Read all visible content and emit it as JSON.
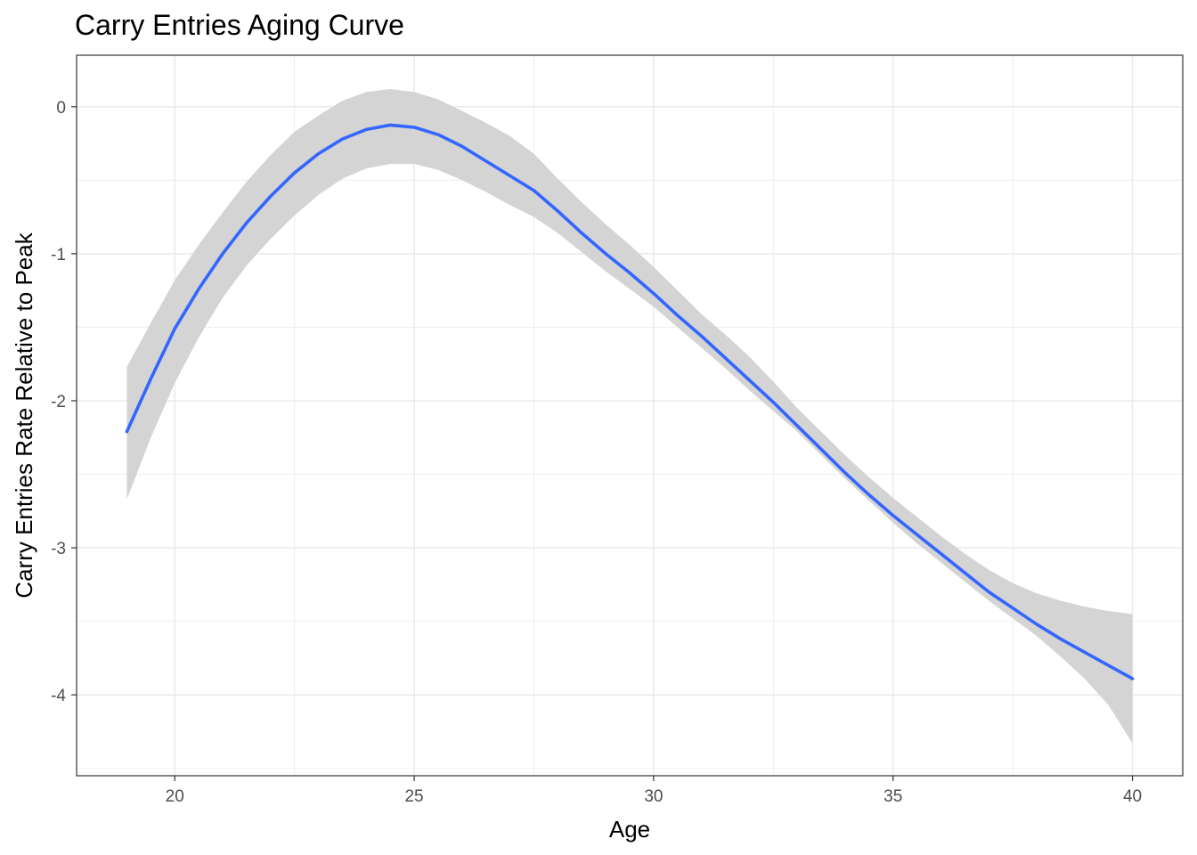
{
  "chart_data": {
    "type": "line",
    "title": "Carry Entries Aging Curve",
    "xlabel": "Age",
    "ylabel": "Carry Entries Rate Relative to Peak",
    "xlim": [
      17.95,
      41.05
    ],
    "ylim": [
      -4.55,
      0.35
    ],
    "x_ticks": [
      20,
      25,
      30,
      35,
      40
    ],
    "y_ticks": [
      0,
      -1,
      -2,
      -3,
      -4
    ],
    "x_tick_labels": [
      "20",
      "25",
      "30",
      "35",
      "40"
    ],
    "y_tick_labels": [
      "0",
      "-1",
      "-2",
      "-3",
      "-4"
    ],
    "grid": true,
    "colors": {
      "line": "#3366FF",
      "ribbon": "#d4d4d4",
      "grid": "#ebebeb",
      "border": "#333333"
    },
    "series": [
      {
        "x": [
          19,
          19.5,
          20,
          20.5,
          21,
          21.5,
          22,
          22.5,
          23,
          23.5,
          24,
          24.5,
          25,
          25.5,
          26,
          26.5,
          27,
          27.5,
          28,
          28.5,
          29,
          29.5,
          30,
          30.5,
          31,
          31.5,
          32,
          32.5,
          33,
          33.5,
          34,
          34.5,
          35,
          35.5,
          36,
          36.5,
          37,
          37.5,
          38,
          38.5,
          39,
          39.5,
          40
        ],
        "y": [
          -2.21,
          -1.85,
          -1.51,
          -1.24,
          -1.0,
          -0.79,
          -0.61,
          -0.45,
          -0.32,
          -0.22,
          -0.155,
          -0.125,
          -0.14,
          -0.19,
          -0.27,
          -0.37,
          -0.47,
          -0.57,
          -0.71,
          -0.86,
          -1.0,
          -1.13,
          -1.27,
          -1.42,
          -1.56,
          -1.71,
          -1.86,
          -2.01,
          -2.17,
          -2.33,
          -2.49,
          -2.64,
          -2.78,
          -2.91,
          -3.04,
          -3.17,
          -3.3,
          -3.41,
          -3.52,
          -3.62,
          -3.71,
          -3.8,
          -3.89
        ],
        "lower": [
          -2.67,
          -2.25,
          -1.88,
          -1.57,
          -1.3,
          -1.08,
          -0.9,
          -0.74,
          -0.6,
          -0.49,
          -0.42,
          -0.39,
          -0.39,
          -0.43,
          -0.5,
          -0.58,
          -0.67,
          -0.75,
          -0.86,
          -0.99,
          -1.12,
          -1.24,
          -1.36,
          -1.5,
          -1.64,
          -1.78,
          -1.93,
          -2.07,
          -2.21,
          -2.37,
          -2.53,
          -2.68,
          -2.83,
          -2.97,
          -3.1,
          -3.23,
          -3.36,
          -3.48,
          -3.6,
          -3.74,
          -3.89,
          -4.07,
          -4.33
        ],
        "upper": [
          -1.77,
          -1.47,
          -1.18,
          -0.94,
          -0.72,
          -0.51,
          -0.33,
          -0.17,
          -0.06,
          0.04,
          0.1,
          0.12,
          0.1,
          0.05,
          -0.03,
          -0.11,
          -0.2,
          -0.32,
          -0.49,
          -0.65,
          -0.8,
          -0.94,
          -1.09,
          -1.25,
          -1.41,
          -1.55,
          -1.7,
          -1.87,
          -2.05,
          -2.21,
          -2.37,
          -2.52,
          -2.66,
          -2.79,
          -2.92,
          -3.04,
          -3.15,
          -3.24,
          -3.31,
          -3.36,
          -3.4,
          -3.43,
          -3.45
        ]
      }
    ]
  }
}
